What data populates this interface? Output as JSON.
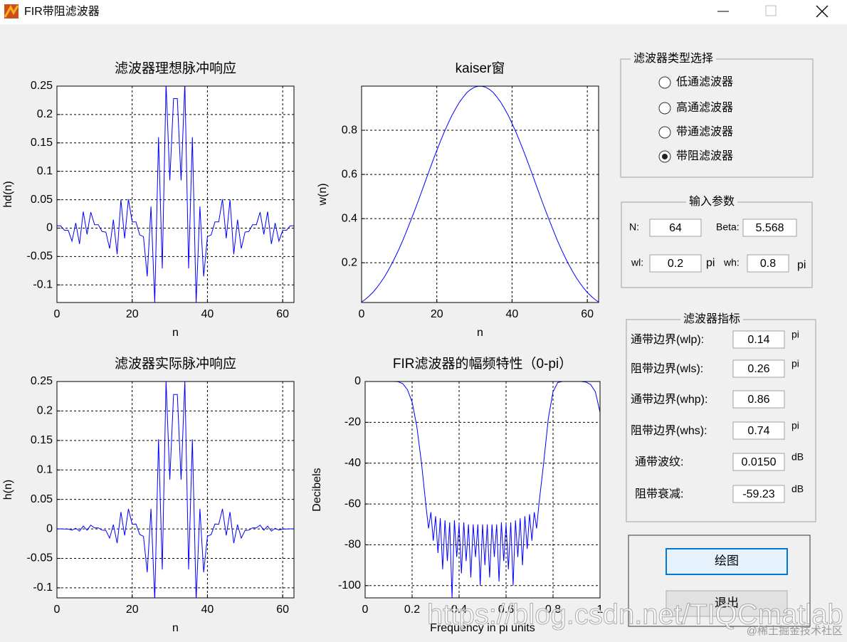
{
  "window": {
    "title": "FIR带阻滤波器"
  },
  "chart_data": [
    {
      "type": "line",
      "title": "滤波器理想脉冲响应",
      "xlabel": "n",
      "ylabel": "hd(n)",
      "color": "#0000ff",
      "grid": true,
      "x": [
        0,
        1,
        2,
        3,
        4,
        5,
        6,
        7,
        8,
        9,
        10,
        11,
        12,
        13,
        14,
        15,
        16,
        17,
        18,
        19,
        20,
        21,
        22,
        23,
        24,
        25,
        26,
        27,
        28,
        29,
        30,
        31,
        32,
        33,
        34,
        35,
        36,
        37,
        38,
        39,
        40,
        41,
        42,
        43,
        44,
        45,
        46,
        47,
        48,
        49,
        50,
        51,
        52,
        53,
        54,
        55,
        56,
        57,
        58,
        59,
        60,
        61,
        62,
        63
      ],
      "values": [
        0.004,
        0.004,
        -0.004,
        -0.004,
        -0.023,
        0.009,
        -0.028,
        0.029,
        -0.011,
        0.028,
        0.006,
        0.006,
        -0.006,
        -0.007,
        -0.036,
        0.015,
        -0.046,
        0.05,
        -0.018,
        0.051,
        0.011,
        0.011,
        -0.012,
        -0.015,
        -0.085,
        0.038,
        -0.131,
        0.16,
        -0.071,
        0.255,
        0.084,
        0.228,
        0.228,
        0.084,
        0.255,
        -0.071,
        0.16,
        -0.131,
        0.038,
        -0.085,
        -0.015,
        -0.012,
        0.011,
        0.011,
        0.051,
        -0.018,
        0.05,
        -0.046,
        0.015,
        -0.036,
        -0.007,
        -0.006,
        0.006,
        0.006,
        0.028,
        -0.011,
        0.029,
        -0.028,
        0.009,
        -0.023,
        -0.004,
        -0.004,
        0.004,
        0.004
      ],
      "xlim": [
        0,
        63
      ],
      "ylim": [
        -0.131,
        0.25
      ],
      "xticks": [
        0,
        20,
        40,
        60
      ],
      "yticks": [
        -0.1,
        -0.05,
        0,
        0.05,
        0.1,
        0.15,
        0.2,
        0.25
      ]
    },
    {
      "type": "line",
      "title": "kaiser窗",
      "xlabel": "n",
      "ylabel": "w(n)",
      "color": "#0000ff",
      "grid": true,
      "x": [
        0,
        1,
        2,
        3,
        4,
        5,
        6,
        7,
        8,
        9,
        10,
        11,
        12,
        13,
        14,
        15,
        16,
        17,
        18,
        19,
        20,
        21,
        22,
        23,
        24,
        25,
        26,
        27,
        28,
        29,
        30,
        31,
        32,
        33,
        34,
        35,
        36,
        37,
        38,
        39,
        40,
        41,
        42,
        43,
        44,
        45,
        46,
        47,
        48,
        49,
        50,
        51,
        52,
        53,
        54,
        55,
        56,
        57,
        58,
        59,
        60,
        61,
        62,
        63
      ],
      "values": [
        0.022,
        0.034,
        0.049,
        0.066,
        0.086,
        0.109,
        0.134,
        0.163,
        0.194,
        0.228,
        0.264,
        0.303,
        0.345,
        0.388,
        0.432,
        0.477,
        0.524,
        0.571,
        0.618,
        0.664,
        0.709,
        0.752,
        0.793,
        0.831,
        0.867,
        0.898,
        0.927,
        0.95,
        0.971,
        0.985,
        0.995,
        0.999,
        0.999,
        0.995,
        0.985,
        0.971,
        0.95,
        0.927,
        0.898,
        0.867,
        0.831,
        0.793,
        0.752,
        0.709,
        0.664,
        0.618,
        0.571,
        0.524,
        0.477,
        0.432,
        0.388,
        0.345,
        0.303,
        0.264,
        0.228,
        0.194,
        0.163,
        0.134,
        0.109,
        0.086,
        0.066,
        0.049,
        0.034,
        0.022
      ],
      "xlim": [
        0,
        63
      ],
      "ylim": [
        0.02,
        1
      ],
      "xticks": [
        0,
        20,
        40,
        60
      ],
      "yticks": [
        0.2,
        0.4,
        0.6,
        0.8
      ]
    },
    {
      "type": "line",
      "title": "滤波器实际脉冲响应",
      "xlabel": "n",
      "ylabel": "h(n)",
      "color": "#0000ff",
      "grid": true,
      "x": [
        0,
        1,
        2,
        3,
        4,
        5,
        6,
        7,
        8,
        9,
        10,
        11,
        12,
        13,
        14,
        15,
        16,
        17,
        18,
        19,
        20,
        21,
        22,
        23,
        24,
        25,
        26,
        27,
        28,
        29,
        30,
        31,
        32,
        33,
        34,
        35,
        36,
        37,
        38,
        39,
        40,
        41,
        42,
        43,
        44,
        45,
        46,
        47,
        48,
        49,
        50,
        51,
        52,
        53,
        54,
        55,
        56,
        57,
        58,
        59,
        60,
        61,
        62,
        63
      ],
      "values": [
        0.0001,
        0.0001,
        -0.0002,
        -0.0003,
        -0.002,
        0.001,
        -0.0038,
        0.0047,
        -0.0021,
        0.0064,
        0.0016,
        0.0018,
        -0.0021,
        -0.0027,
        -0.0156,
        0.0072,
        -0.0241,
        0.0286,
        -0.0111,
        0.0339,
        0.0078,
        0.0083,
        -0.0095,
        -0.0125,
        -0.0737,
        0.0341,
        -0.1214,
        0.152,
        -0.0689,
        0.2512,
        0.0836,
        0.2279,
        0.2279,
        0.0836,
        0.2512,
        -0.0689,
        0.152,
        -0.1214,
        0.0341,
        -0.0737,
        -0.0125,
        -0.0095,
        0.0083,
        0.0078,
        0.0339,
        -0.0111,
        0.0286,
        -0.0241,
        0.0072,
        -0.0156,
        -0.0027,
        -0.0021,
        0.0018,
        0.0016,
        0.0064,
        -0.0021,
        0.0047,
        -0.0038,
        0.001,
        -0.002,
        -0.0003,
        -0.0002,
        0.0001,
        0.0001
      ],
      "xlim": [
        0,
        63
      ],
      "ylim": [
        -0.117,
        0.25
      ],
      "xticks": [
        0,
        20,
        40,
        60
      ],
      "yticks": [
        -0.1,
        -0.05,
        0,
        0.05,
        0.1,
        0.15,
        0.2,
        0.25
      ]
    },
    {
      "type": "line",
      "title": "FIR滤波器的幅频特性（0-pi）",
      "xlabel": "Frequency in pi units",
      "ylabel": "Decibels",
      "color": "#0000ff",
      "grid": true,
      "x": [
        0,
        0.02,
        0.04,
        0.06,
        0.08,
        0.1,
        0.12,
        0.14,
        0.16,
        0.18,
        0.2,
        0.22,
        0.24,
        0.26,
        0.27,
        0.28,
        0.29,
        0.3,
        0.31,
        0.32,
        0.33,
        0.34,
        0.35,
        0.36,
        0.37,
        0.38,
        0.39,
        0.4,
        0.41,
        0.42,
        0.43,
        0.44,
        0.45,
        0.46,
        0.47,
        0.48,
        0.49,
        0.5,
        0.51,
        0.52,
        0.53,
        0.54,
        0.55,
        0.56,
        0.57,
        0.58,
        0.59,
        0.6,
        0.61,
        0.62,
        0.63,
        0.64,
        0.65,
        0.66,
        0.67,
        0.68,
        0.69,
        0.7,
        0.71,
        0.72,
        0.73,
        0.74,
        0.76,
        0.78,
        0.8,
        0.82,
        0.84,
        0.86,
        0.88,
        0.9,
        0.92,
        0.94,
        0.96,
        0.98,
        1
      ],
      "values": [
        0,
        0,
        0,
        0,
        0,
        0,
        0,
        -0.1,
        -1,
        -4,
        -10,
        -22,
        -40,
        -62,
        -72,
        -64,
        -78,
        -66,
        -84,
        -67,
        -92,
        -68,
        -88,
        -69,
        -106,
        -68,
        -86,
        -70,
        -94,
        -69,
        -88,
        -70,
        -96,
        -70,
        -86,
        -70,
        -100,
        -70,
        -90,
        -70,
        -96,
        -70,
        -86,
        -70,
        -98,
        -69,
        -88,
        -70,
        -92,
        -69,
        -100,
        -68,
        -86,
        -67,
        -90,
        -66,
        -82,
        -65,
        -78,
        -64,
        -72,
        -60,
        -40,
        -18,
        -5,
        -0.5,
        0,
        0,
        0,
        0,
        0,
        -0.3,
        -1.5,
        -5,
        -15
      ],
      "xlim": [
        0,
        1
      ],
      "ylim": [
        -106,
        0
      ],
      "xticks": [
        0,
        0.2,
        0.4,
        0.6,
        0.8,
        1
      ],
      "yticks": [
        -100,
        -80,
        -60,
        -40,
        -20,
        0
      ]
    }
  ],
  "filter_type": {
    "title": "滤波器类型选择",
    "options": [
      "低通滤波器",
      "高通滤波器",
      "带通滤波器",
      "带阻滤波器"
    ],
    "selected": 3
  },
  "params": {
    "title": "输入参数",
    "fields": [
      {
        "label": "N:",
        "value": "64"
      },
      {
        "label": "Beta:",
        "value": "5.568"
      },
      {
        "label": "wl:",
        "value": "0.2",
        "unit": "pi"
      },
      {
        "label": "wh:",
        "value": "0.8",
        "unit": "pi"
      }
    ]
  },
  "specs": {
    "title": "滤波器指标",
    "rows": [
      {
        "label": "通带边界(wlp):",
        "value": "0.14",
        "unit": "pi"
      },
      {
        "label": "阻带边界(wls):",
        "value": "0.26",
        "unit": "pi"
      },
      {
        "label": "通带边界(whp):",
        "value": "0.86"
      },
      {
        "label": "阻带边界(whs):",
        "value": "0.74",
        "unit": "pi"
      },
      {
        "label": "通带波纹:",
        "value": "0.0150",
        "unit": "dB"
      },
      {
        "label": "阻带衰减:",
        "value": "-59.23",
        "unit": "dB"
      }
    ]
  },
  "buttons": [
    "绘图",
    "退出"
  ],
  "watermark": [
    "https://blog.csdn.net/TIQCmatlab",
    "@稀土掘金技术社区"
  ]
}
